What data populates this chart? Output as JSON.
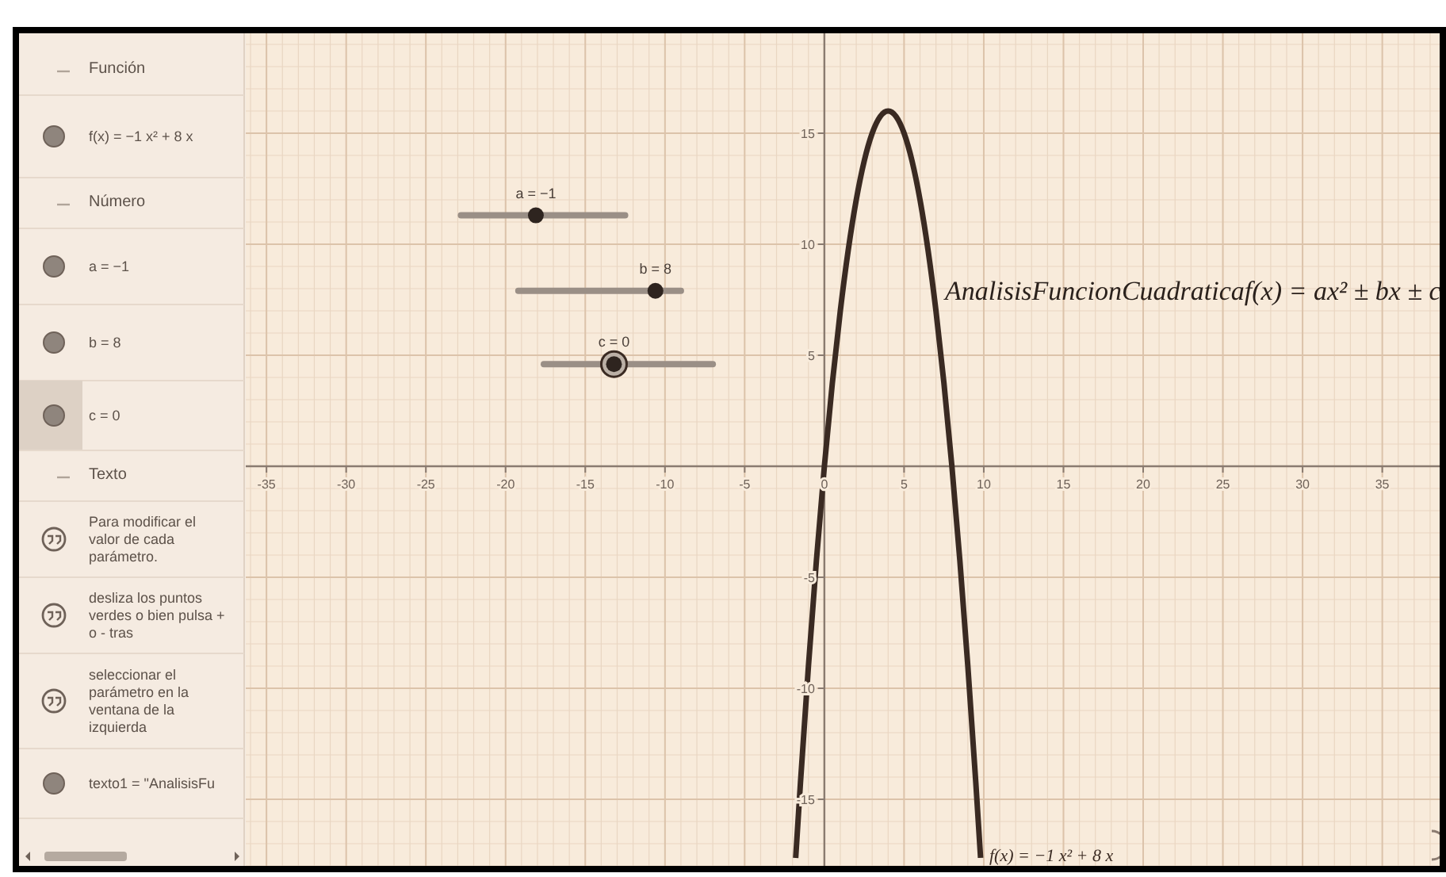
{
  "chart_data": {
    "type": "line",
    "x": [
      -1.8,
      -1.5,
      -1,
      -0.5,
      0,
      0.5,
      1,
      1.5,
      2,
      2.5,
      3,
      3.5,
      4,
      4.5,
      5,
      5.5,
      6,
      6.5,
      7,
      7.5,
      8,
      8.5,
      9,
      9.5,
      9.8
    ],
    "series": [
      {
        "color": "#3a2a22",
        "values": [
          -17.64,
          -14.25,
          -9,
          -4.25,
          0,
          3.75,
          7,
          9.75,
          12,
          13.75,
          15,
          15.75,
          16,
          15.75,
          15,
          13.75,
          12,
          9.75,
          7,
          3.75,
          0,
          -4.25,
          -9,
          -14.25,
          -17.64
        ]
      }
    ],
    "xlim": [
      -36.3,
      38.6
    ],
    "ylim": [
      -18,
      19.5
    ],
    "xticks": [
      -35,
      -30,
      -25,
      -20,
      -15,
      -10,
      -5,
      0,
      5,
      10,
      15,
      20,
      25,
      30,
      35
    ],
    "yticks": [
      -15,
      -10,
      -5,
      5,
      10,
      15
    ],
    "grid": true,
    "marker": "none",
    "line_style": "solid",
    "annotations": [
      "Función",
      "f(x) = −1 x² + 8 x",
      "Número",
      "a = −1",
      "b = 8",
      "c = 0",
      "Texto",
      "Para modificar el valor de cada parámetro.",
      "desliza los puntos verdes o bien pulsa + o - tras",
      "seleccionar el parámetro en la ventana de la izquierda",
      "texto1 = \"AnalisisFu",
      "a = −1",
      "b = 8",
      "c = 0",
      "AnalisisFuncionCuadraticaf(x) = ax² ± bx ± c",
      "f(x) = −1 x² + 8 x"
    ]
  }
}
